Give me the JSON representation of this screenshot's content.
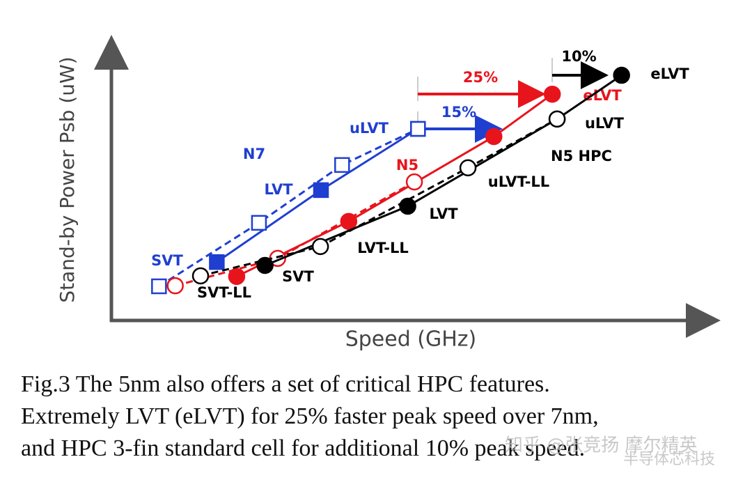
{
  "chart_data": {
    "type": "line",
    "xlabel": "Speed (GHz)",
    "ylabel": "Stand-by Power Psb (uW)",
    "xlim": [
      0,
      100
    ],
    "ylim": [
      0,
      100
    ],
    "series": [
      {
        "name": "N7",
        "color": "#1f3fd0",
        "style": "solid",
        "marker": "square-filled",
        "x": [
          17.5,
          34.8,
          50.9
        ],
        "values": [
          20.7,
          46.2,
          67.9
        ],
        "point_labels": [
          "SVT",
          "LVT",
          "uLVT"
        ]
      },
      {
        "color": "#1f3fd0",
        "style": "dashed",
        "marker": "square-open",
        "x": [
          7.9,
          24.5,
          38.3,
          50.9
        ],
        "values": [
          12.1,
          34.6,
          55.1,
          67.9
        ]
      },
      {
        "name": "N5",
        "color": "#e8141c",
        "style": "solid",
        "marker": "circle-filled",
        "x": [
          20.8,
          39.4,
          63.5,
          73.2
        ],
        "values": [
          15.6,
          35.1,
          65.2,
          80.2
        ],
        "point_labels": [
          null,
          null,
          null,
          "eLVT"
        ]
      },
      {
        "color": "#e8141c",
        "style": "dashed",
        "marker": "circle-open",
        "x": [
          10.6,
          27.6,
          50.3
        ],
        "values": [
          12.3,
          22.0,
          49.1
        ]
      },
      {
        "name": "N5 HPC",
        "color": "#000000",
        "style": "solid",
        "marker": "circle-filled",
        "x": [
          25.5,
          49.2,
          74.0,
          84.7
        ],
        "values": [
          19.5,
          40.5,
          71.4,
          86.9
        ],
        "point_labels": [
          "SVT",
          "LVT",
          "uLVT",
          "eLVT"
        ]
      },
      {
        "color": "#000000",
        "style": "dashed",
        "marker": "circle-open",
        "x": [
          14.8,
          34.7,
          59.2,
          74.0
        ],
        "values": [
          15.8,
          26.2,
          54.1,
          71.4
        ],
        "point_labels": [
          "SVT-LL",
          "LVT-LL",
          "uLVT-LL",
          null
        ]
      }
    ],
    "annotations": [
      {
        "text": "10%",
        "color": "#000000"
      },
      {
        "text": "25%",
        "color": "#e8141c"
      },
      {
        "text": "15%",
        "color": "#1f3fd0"
      }
    ],
    "caption": [
      "Fig.3 The 5nm also offers a set of critical HPC features.",
      "Extremely LVT (eLVT) for 25% faster peak speed over 7nm,",
      "and HPC 3-fin standard cell for additional 10% peak speed."
    ],
    "watermark": [
      "知乎 @张竞扬 摩尔精英",
      "半导体芯科技"
    ]
  }
}
